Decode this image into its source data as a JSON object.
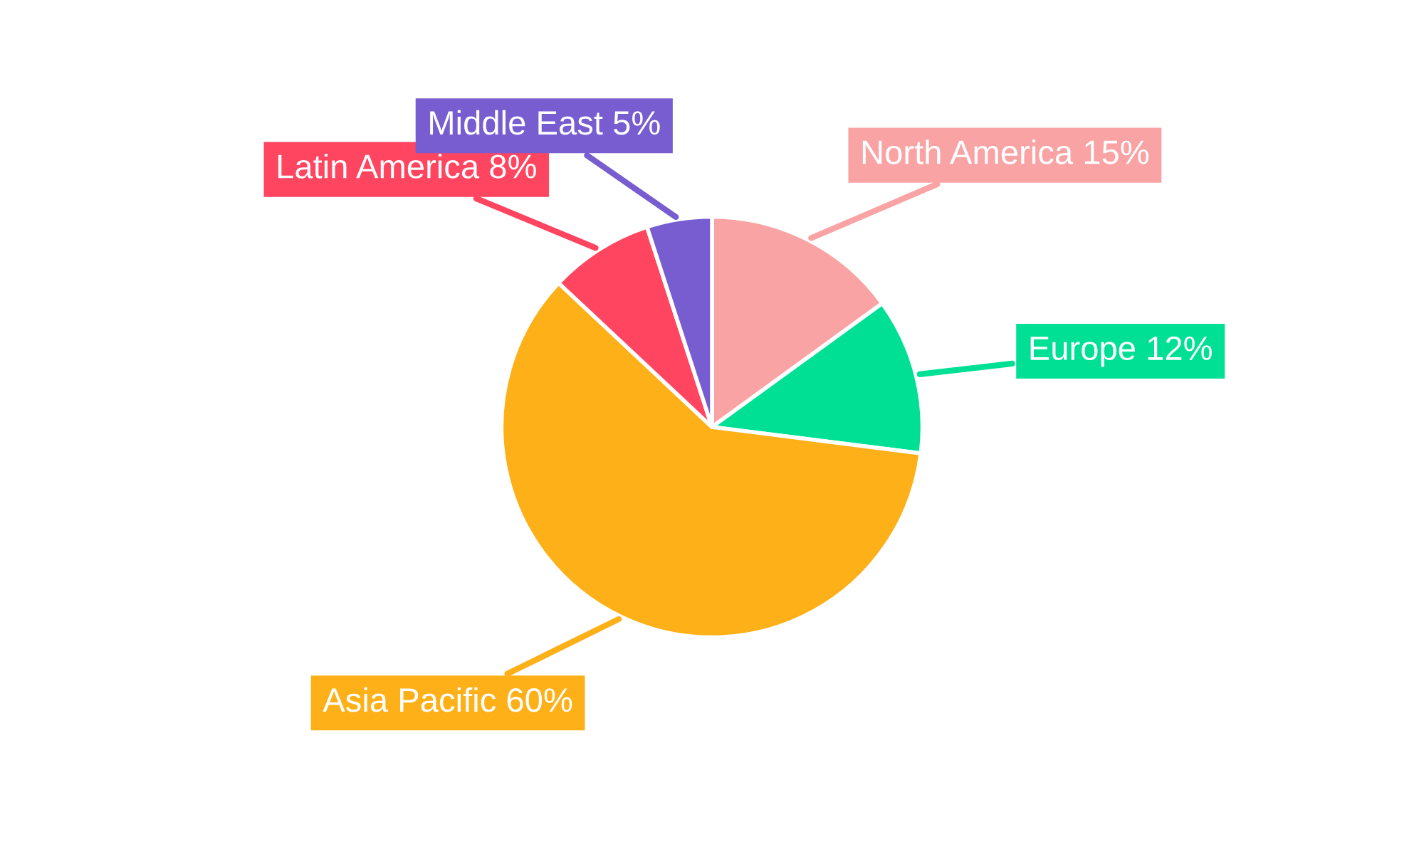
{
  "chart_data": {
    "type": "pie",
    "categories": [
      "North America",
      "Europe",
      "Asia Pacific",
      "Latin America",
      "Middle East"
    ],
    "values": [
      15,
      12,
      60,
      8,
      5
    ],
    "value_labels": [
      "15%",
      "12%",
      "60%",
      "8%",
      "5%"
    ],
    "colors": [
      "#f9a3a4",
      "#00e095",
      "#feb019",
      "#ff4560",
      "#775dd0"
    ],
    "legend": false
  }
}
